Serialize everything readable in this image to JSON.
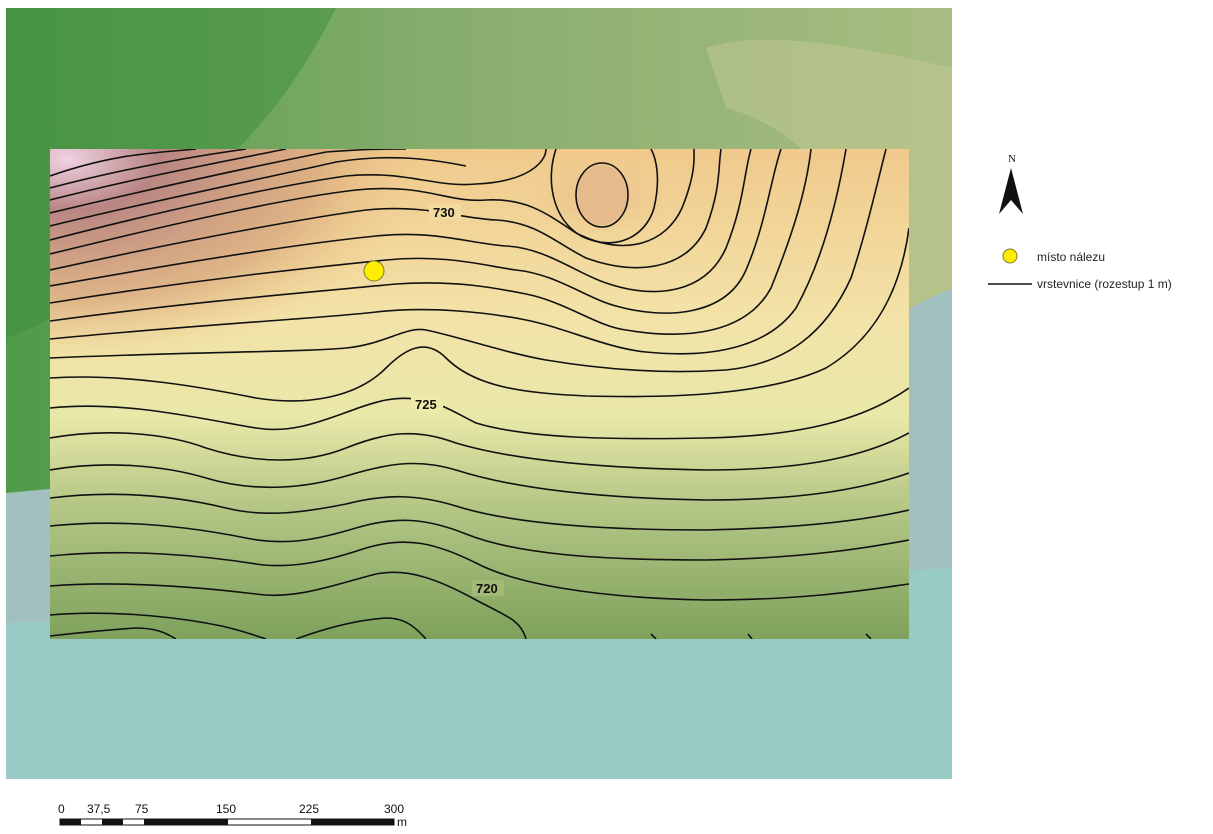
{
  "map": {
    "contour_labels": [
      {
        "name": "contour-label-730",
        "text": "730"
      },
      {
        "name": "contour-label-725",
        "text": "725"
      },
      {
        "name": "contour-label-720",
        "text": "720"
      }
    ],
    "find_point_color": "#ffee00"
  },
  "north_arrow": {
    "letter": "N",
    "icon": "north-arrow-icon"
  },
  "legend": {
    "find_site_label": "místo nálezu",
    "contour_label": "vrstevnice (rozestup 1 m)"
  },
  "scale": {
    "ticks": [
      "0",
      "37,5",
      "75",
      "150",
      "225",
      "300"
    ],
    "unit": "m"
  },
  "colors": {
    "hill_dark_green": "#4f9a48",
    "terrain_light_green": "#9bbb76",
    "water_blue": "#9fc8c6",
    "dem_high": "#b98583",
    "dem_peak": "#f1d7a8",
    "dem_low": "#7ea25c"
  }
}
